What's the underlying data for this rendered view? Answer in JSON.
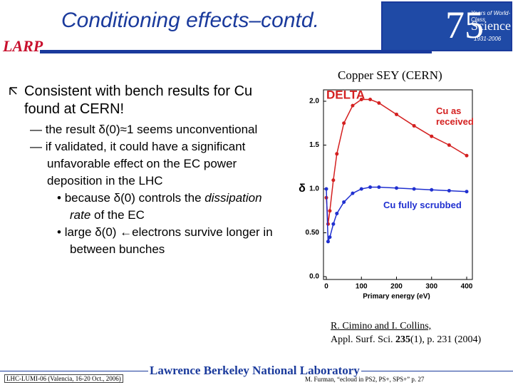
{
  "header": {
    "title": "Conditioning effects–contd.",
    "logo_left": "LARP",
    "logo_right": {
      "number": "75",
      "line1": "Years of World-Class",
      "line2": "Science",
      "line3": "1931-2006"
    }
  },
  "bullets": [
    {
      "text": "Consistent with bench results for Cu found at CERN!",
      "items": [
        {
          "text": "the result δ(0)≈1 seems unconventional"
        },
        {
          "text": "if validated, it could have a significant unfavorable effect on the EC power deposition in the LHC",
          "items": [
            {
              "before": "because δ(0) controls the ",
              "emphasis": "dissipation rate",
              "after": " of the EC"
            },
            {
              "text": "large δ(0) ←electrons survive longer in between bunches"
            }
          ]
        }
      ]
    }
  ],
  "figure": {
    "caption": "Copper SEY (CERN)",
    "chart_data": {
      "type": "line",
      "title": "DELTA",
      "xlabel": "Primary energy (eV)",
      "ylabel": "δ",
      "x": [
        0,
        5,
        10,
        20,
        30,
        50,
        75,
        100,
        125,
        150,
        200,
        250,
        300,
        350,
        400
      ],
      "series": [
        {
          "name": "Cu as received",
          "color": "#d42020",
          "values": [
            0.9,
            0.6,
            0.75,
            1.1,
            1.4,
            1.75,
            1.95,
            2.02,
            2.02,
            1.98,
            1.85,
            1.72,
            1.6,
            1.5,
            1.38
          ]
        },
        {
          "name": "Cu fully scrubbed",
          "color": "#2030d0",
          "values": [
            1.0,
            0.4,
            0.45,
            0.6,
            0.72,
            0.85,
            0.95,
            1.0,
            1.02,
            1.02,
            1.01,
            1.0,
            0.99,
            0.98,
            0.97
          ]
        }
      ],
      "xlim": [
        0,
        400
      ],
      "xticks": [
        0,
        100,
        200,
        300,
        400
      ],
      "ylim": [
        0,
        2.0
      ],
      "yticks": [
        {
          "value": 0,
          "label": "0.0"
        },
        {
          "value": 0.5,
          "label": "0.50"
        },
        {
          "value": 1.0,
          "label": "1.0"
        },
        1.5,
        {
          "value": 2.0,
          "label": "2.0"
        }
      ],
      "grid": false
    }
  },
  "reference": {
    "authors": "R. Cimino and I. Collins,",
    "journal": "Appl. Surf. Sci. ",
    "volume": "235",
    "pages": "(1), p. 231 (2004)"
  },
  "footer": {
    "left": "LHC-LUMI-06 (Valencia, 16-20 Oct., 2006)",
    "center": "Lawrence Berkeley National Laboratory",
    "right": "M. Furman, “ecloud in PS2, PS+, SPS+” p. 27"
  }
}
